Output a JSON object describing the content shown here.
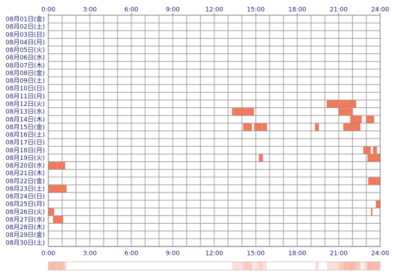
{
  "chart_data": {
    "type": "timeline",
    "color": "#f27a5a",
    "strip_color": "#f7a48e",
    "xlim": [
      0,
      24
    ],
    "xticks": [
      {
        "value": 0,
        "label": "0:00"
      },
      {
        "value": 3,
        "label": "3:00"
      },
      {
        "value": 6,
        "label": "6:00"
      },
      {
        "value": 9,
        "label": "9:00"
      },
      {
        "value": 12,
        "label": "12:00"
      },
      {
        "value": 15,
        "label": "15:00"
      },
      {
        "value": 18,
        "label": "18:00"
      },
      {
        "value": 21,
        "label": "21:00"
      },
      {
        "value": 24,
        "label": "24:00"
      }
    ],
    "rows": [
      {
        "label": "08月01日(金)",
        "blocks": []
      },
      {
        "label": "08月02日(土)",
        "blocks": []
      },
      {
        "label": "08月03日(日)",
        "blocks": []
      },
      {
        "label": "08月04日(月)",
        "blocks": []
      },
      {
        "label": "08月05日(火)",
        "blocks": []
      },
      {
        "label": "08月06日(水)",
        "blocks": []
      },
      {
        "label": "08月07日(木)",
        "blocks": []
      },
      {
        "label": "08月08日(金)",
        "blocks": []
      },
      {
        "label": "08月09日(土)",
        "blocks": []
      },
      {
        "label": "08月10日(日)",
        "blocks": []
      },
      {
        "label": "08月11日(月)",
        "blocks": []
      },
      {
        "label": "08月12日(火)",
        "blocks": [
          [
            20.15,
            22.25
          ]
        ]
      },
      {
        "label": "08月13日(水)",
        "blocks": [
          [
            13.3,
            14.85
          ],
          [
            21.0,
            22.0
          ]
        ]
      },
      {
        "label": "08月14日(木)",
        "blocks": [
          [
            21.85,
            22.65
          ],
          [
            23.0,
            23.55
          ]
        ]
      },
      {
        "label": "08月15日(金)",
        "blocks": [
          [
            14.1,
            14.7
          ],
          [
            14.9,
            15.4
          ],
          [
            15.45,
            15.8
          ],
          [
            19.3,
            19.55
          ],
          [
            21.35,
            22.55
          ]
        ]
      },
      {
        "label": "08月16日(土)",
        "blocks": []
      },
      {
        "label": "08月17日(日)",
        "blocks": []
      },
      {
        "label": "08月18日(月)",
        "blocks": [
          [
            22.8,
            23.3
          ],
          [
            23.5,
            23.75
          ]
        ]
      },
      {
        "label": "08月19日(火)",
        "blocks": [
          [
            15.25,
            15.5
          ],
          [
            23.1,
            24
          ]
        ]
      },
      {
        "label": "08月20日(水)",
        "blocks": [
          [
            0,
            0.6
          ],
          [
            0.65,
            1.2
          ]
        ]
      },
      {
        "label": "08月21日(木)",
        "blocks": []
      },
      {
        "label": "08月22日(金)",
        "blocks": [
          [
            23.15,
            24
          ]
        ]
      },
      {
        "label": "08月23日(土)",
        "blocks": [
          [
            0,
            1.3
          ]
        ]
      },
      {
        "label": "08月24日(日)",
        "blocks": []
      },
      {
        "label": "08月25日(月)",
        "blocks": [
          [
            23.7,
            24
          ]
        ]
      },
      {
        "label": "08月26日(火)",
        "blocks": [
          [
            0,
            0.4
          ],
          [
            23.35,
            23.42
          ]
        ]
      },
      {
        "label": "08月27日(水)",
        "blocks": [
          [
            0.35,
            1.05
          ]
        ]
      },
      {
        "label": "08月28日(木)",
        "blocks": []
      },
      {
        "label": "08月29日(金)",
        "blocks": []
      },
      {
        "label": "08月30日(土)",
        "blocks": []
      }
    ]
  }
}
